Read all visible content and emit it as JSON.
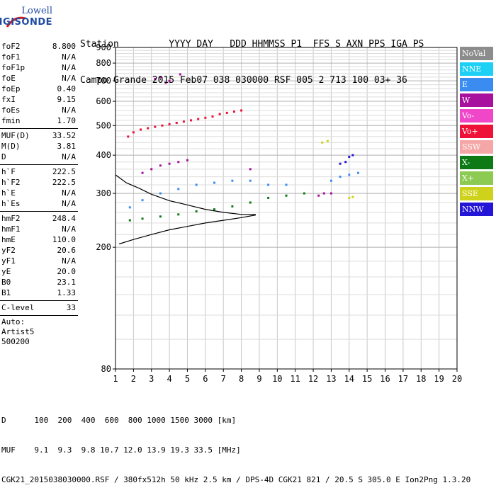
{
  "logo": {
    "line1": "Lowell",
    "line2": "DIGISONDE"
  },
  "header": {
    "labels": [
      "Station",
      "YYYY",
      "DAY",
      "DDD",
      "HHMMSS",
      "P1",
      "FFS",
      "S",
      "AXN",
      "PPS",
      "IGA",
      "PS"
    ],
    "values": [
      "Campo Grande",
      "2015",
      "Feb07",
      "038",
      "030000",
      "RSF",
      "005",
      "2",
      "713",
      "100",
      "03+",
      "36"
    ]
  },
  "params": {
    "group1": [
      {
        "k": "foF2",
        "v": "8.800"
      },
      {
        "k": "foF1",
        "v": "N/A"
      },
      {
        "k": "foF1p",
        "v": "N/A"
      },
      {
        "k": "foE",
        "v": "N/A"
      },
      {
        "k": "foEp",
        "v": "0.40"
      },
      {
        "k": "fxI",
        "v": "9.15"
      },
      {
        "k": "foEs",
        "v": "N/A"
      },
      {
        "k": "fmin",
        "v": "1.70"
      }
    ],
    "group2": [
      {
        "k": "MUF(D)",
        "v": "33.52"
      },
      {
        "k": "M(D)",
        "v": "3.81"
      },
      {
        "k": "D",
        "v": "N/A"
      }
    ],
    "group3": [
      {
        "k": "h`F",
        "v": "222.5"
      },
      {
        "k": "h`F2",
        "v": "222.5"
      },
      {
        "k": "h`E",
        "v": "N/A"
      },
      {
        "k": "h`Es",
        "v": "N/A"
      }
    ],
    "group4": [
      {
        "k": "hmF2",
        "v": "248.4"
      },
      {
        "k": "hmF1",
        "v": "N/A"
      },
      {
        "k": "hmE",
        "v": "110.0"
      },
      {
        "k": "yF2",
        "v": "20.6"
      },
      {
        "k": "yF1",
        "v": "N/A"
      },
      {
        "k": "yE",
        "v": "20.0"
      },
      {
        "k": "B0",
        "v": "23.1"
      },
      {
        "k": "B1",
        "v": "1.33"
      }
    ],
    "group5": [
      {
        "k": "C-level",
        "v": "33"
      }
    ],
    "auto": [
      "Auto:",
      "Artist5",
      "500200"
    ]
  },
  "legend": [
    {
      "label": "NoVal",
      "color": "#8c8c8c"
    },
    {
      "label": "NNE",
      "color": "#1ed0f5"
    },
    {
      "label": "E",
      "color": "#3b8cf0"
    },
    {
      "label": "W",
      "color": "#a8109e"
    },
    {
      "label": "Vo-",
      "color": "#f046c8"
    },
    {
      "label": "Vo+",
      "color": "#ee1238"
    },
    {
      "label": "SSW",
      "color": "#f5a6a6"
    },
    {
      "label": "X-",
      "color": "#0e7a16"
    },
    {
      "label": "X+",
      "color": "#8cca52"
    },
    {
      "label": "SSE",
      "color": "#cfd21a"
    },
    {
      "label": "NNW",
      "color": "#2416d6"
    }
  ],
  "footer": {
    "d_row": "D      100  200  400  600  800 1000 1500 3000 [km]",
    "muf_row": "MUF    9.1  9.3  9.8 10.7 12.0 13.9 19.3 33.5 [MHz]",
    "file_row": "CGK21_2015038030000.RSF / 380fx512h 50 kHz 2.5 km / DPS-4D CGK21 821 / 20.5 S 305.0 E Ion2Png 1.3.20"
  },
  "chart_data": {
    "type": "scatter",
    "xlim": [
      1,
      20
    ],
    "ylim": [
      80,
      900
    ],
    "x_ticks": [
      "1",
      "2",
      "3",
      "4",
      "5",
      "6",
      "7",
      "8",
      "9",
      "10",
      "11",
      "12",
      "13",
      "14",
      "15",
      "16",
      "17",
      "18",
      "19",
      "20"
    ],
    "y_ticks": [
      "80",
      "200",
      "300",
      "400",
      "500",
      "600",
      "700",
      "800",
      "900"
    ],
    "y_scale": "log",
    "grid": true,
    "legend_placement": "right",
    "series": [
      {
        "color": "#a8109e",
        "points": [
          [
            3.5,
            720
          ],
          [
            4.6,
            735
          ],
          [
            4.0,
            700
          ],
          [
            3.2,
            710
          ],
          [
            3.8,
            690
          ]
        ]
      },
      {
        "color": "#ee1238",
        "points": [
          [
            1.7,
            460
          ],
          [
            2.0,
            475
          ],
          [
            2.4,
            485
          ],
          [
            2.8,
            490
          ],
          [
            3.2,
            495
          ],
          [
            3.6,
            500
          ],
          [
            4.0,
            505
          ],
          [
            4.4,
            510
          ],
          [
            4.8,
            515
          ],
          [
            5.2,
            520
          ],
          [
            5.6,
            525
          ],
          [
            6.0,
            530
          ],
          [
            6.4,
            535
          ],
          [
            6.8,
            545
          ],
          [
            7.2,
            550
          ],
          [
            7.6,
            555
          ],
          [
            8.0,
            560
          ]
        ]
      },
      {
        "color": "#a8109e",
        "points": [
          [
            2.5,
            350
          ],
          [
            3.0,
            360
          ],
          [
            3.5,
            370
          ],
          [
            4.0,
            375
          ],
          [
            4.5,
            380
          ],
          [
            5.0,
            385
          ],
          [
            8.5,
            360
          ],
          [
            12.3,
            295
          ],
          [
            12.6,
            300
          ],
          [
            13.0,
            300
          ]
        ]
      },
      {
        "color": "#3b8cf0",
        "points": [
          [
            1.8,
            270
          ],
          [
            2.5,
            285
          ],
          [
            3.5,
            300
          ],
          [
            4.5,
            310
          ],
          [
            5.5,
            320
          ],
          [
            6.5,
            325
          ],
          [
            7.5,
            330
          ],
          [
            8.5,
            330
          ],
          [
            9.5,
            320
          ],
          [
            10.5,
            320
          ],
          [
            13.0,
            330
          ],
          [
            13.5,
            340
          ],
          [
            14.0,
            345
          ],
          [
            14.5,
            350
          ]
        ]
      },
      {
        "color": "#0e7a16",
        "points": [
          [
            1.8,
            245
          ],
          [
            2.5,
            248
          ],
          [
            3.5,
            252
          ],
          [
            4.5,
            256
          ],
          [
            5.5,
            262
          ],
          [
            6.5,
            266
          ],
          [
            7.5,
            272
          ],
          [
            8.5,
            280
          ],
          [
            9.5,
            290
          ],
          [
            10.5,
            295
          ],
          [
            11.5,
            300
          ]
        ]
      },
      {
        "color": "#2416d6",
        "points": [
          [
            13.8,
            380
          ],
          [
            14.0,
            395
          ],
          [
            14.2,
            400
          ],
          [
            13.5,
            375
          ]
        ]
      },
      {
        "color": "#cfd21a",
        "points": [
          [
            12.5,
            440
          ],
          [
            12.8,
            445
          ],
          [
            14.0,
            290
          ],
          [
            14.2,
            292
          ]
        ]
      }
    ],
    "curves": [
      {
        "name": "trace-lower",
        "points": [
          [
            1.2,
            205
          ],
          [
            2.0,
            212
          ],
          [
            3.0,
            220
          ],
          [
            4.0,
            228
          ],
          [
            5.0,
            234
          ],
          [
            6.0,
            240
          ],
          [
            7.0,
            245
          ],
          [
            8.0,
            250
          ],
          [
            8.8,
            255
          ]
        ]
      },
      {
        "name": "trace-upper",
        "points": [
          [
            1.0,
            345
          ],
          [
            1.6,
            325
          ],
          [
            2.3,
            312
          ],
          [
            3.0,
            298
          ],
          [
            4.0,
            284
          ],
          [
            5.0,
            275
          ],
          [
            6.0,
            266
          ],
          [
            7.0,
            260
          ],
          [
            8.0,
            256
          ],
          [
            8.8,
            256
          ]
        ]
      }
    ]
  }
}
